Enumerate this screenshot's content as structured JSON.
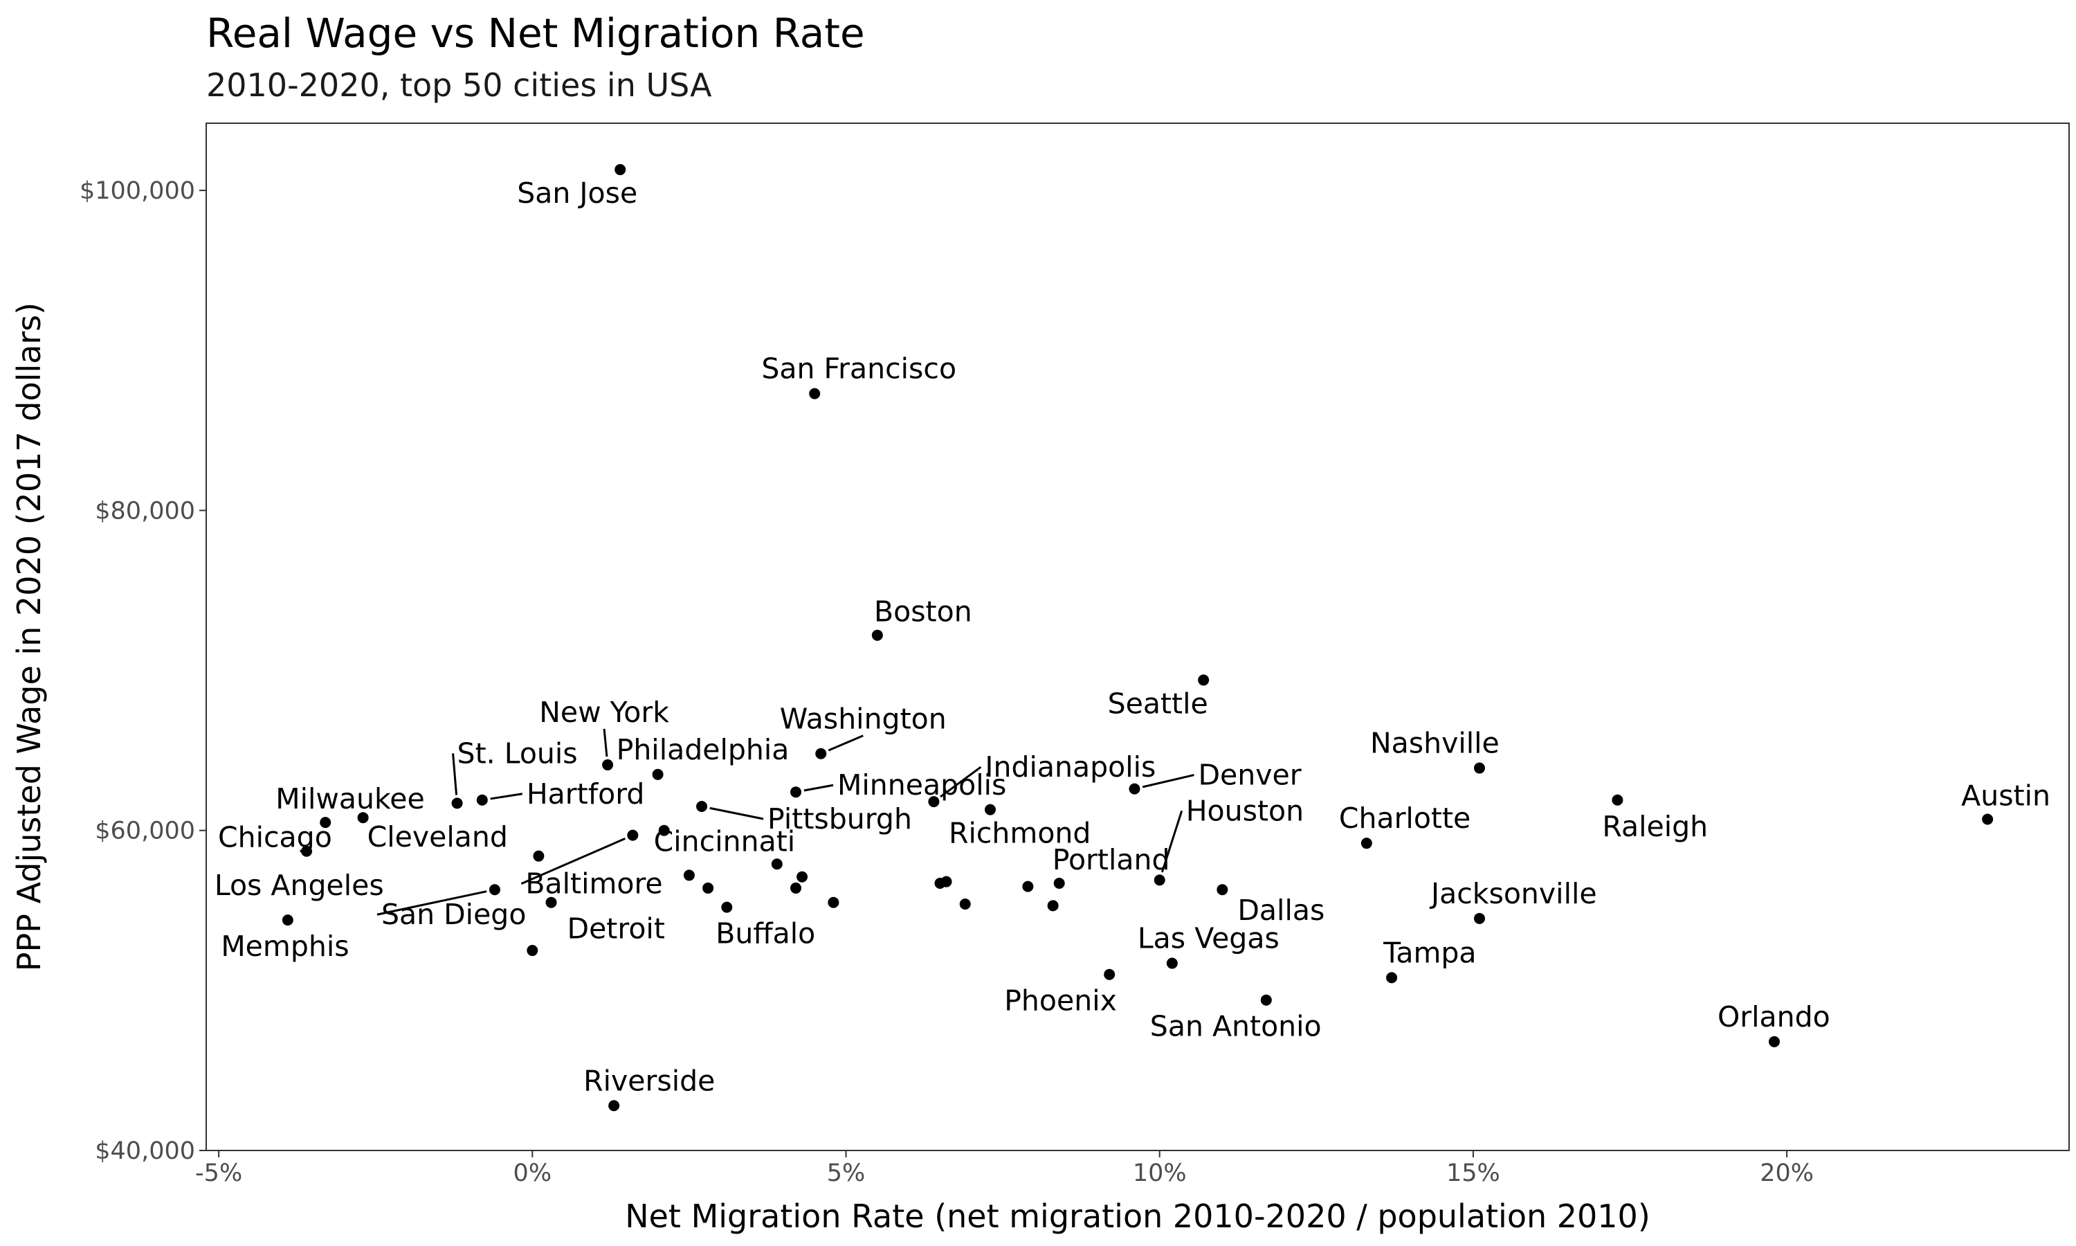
{
  "chart_data": {
    "type": "scatter",
    "title": "Real Wage vs Net Migration Rate",
    "subtitle": "2010-2020, top 50 cities in USA",
    "xlabel": "Net Migration Rate (net migration 2010-2020 / population 2010)",
    "ylabel": "PPP Adjusted Wage in 2020 (2017 dollars)",
    "xlim": [
      -0.052,
      0.245
    ],
    "ylim": [
      40000,
      104200
    ],
    "x_ticks": [
      -0.05,
      0,
      0.05,
      0.1,
      0.15,
      0.2
    ],
    "x_tick_labels": [
      "-5%",
      "0%",
      "5%",
      "10%",
      "15%",
      "20%"
    ],
    "y_ticks": [
      40000,
      60000,
      80000,
      100000
    ],
    "y_tick_labels": [
      "$40,000",
      "$60,000",
      "$80,000",
      "$100,000"
    ],
    "grid": false,
    "marker_color": "#000000",
    "points": [
      {
        "label": "San Jose",
        "x": 0.014,
        "y": 101300
      },
      {
        "label": "San Francisco",
        "x": 0.045,
        "y": 87300
      },
      {
        "label": "Boston",
        "x": 0.055,
        "y": 72200
      },
      {
        "label": "Seattle",
        "x": 0.107,
        "y": 69400
      },
      {
        "label": "Washington",
        "x": 0.046,
        "y": 64800
      },
      {
        "label": "New York",
        "x": 0.012,
        "y": 64100
      },
      {
        "label": "Philadelphia",
        "x": 0.02,
        "y": 63500
      },
      {
        "label": "Nashville",
        "x": 0.151,
        "y": 63900
      },
      {
        "label": "Indianapolis",
        "x": 0.064,
        "y": 61800
      },
      {
        "label": "Minneapolis",
        "x": 0.042,
        "y": 62400
      },
      {
        "label": "Denver",
        "x": 0.096,
        "y": 62600
      },
      {
        "label": "Raleigh",
        "x": 0.173,
        "y": 61900
      },
      {
        "label": "Austin",
        "x": 0.232,
        "y": 60700
      },
      {
        "label": "St. Louis",
        "x": -0.012,
        "y": 61700
      },
      {
        "label": "Hartford",
        "x": -0.008,
        "y": 61900
      },
      {
        "label": "Milwaukee",
        "x": -0.033,
        "y": 60500
      },
      {
        "label": "Cleveland",
        "x": -0.027,
        "y": 60800
      },
      {
        "label": "Chicago",
        "x": -0.036,
        "y": 58700
      },
      {
        "label": "Pittsburgh",
        "x": 0.027,
        "y": 61500
      },
      {
        "label": "Richmond",
        "x": 0.073,
        "y": 61300
      },
      {
        "label": "Houston",
        "x": 0.1,
        "y": 56900
      },
      {
        "label": "Charlotte",
        "x": 0.133,
        "y": 59200
      },
      {
        "label": "Cincinnati",
        "x": 0.021,
        "y": 60000
      },
      {
        "label": "Baltimore",
        "x": 0.016,
        "y": 59700
      },
      {
        "label": "Portland",
        "x": 0.084,
        "y": 56700
      },
      {
        "label": "Los Angeles",
        "x": -0.039,
        "y": 54400
      },
      {
        "label": "Memphis",
        "x": 0.0,
        "y": 52500
      },
      {
        "label": "San Diego",
        "x": -0.006,
        "y": 56300
      },
      {
        "label": "Detroit",
        "x": 0.003,
        "y": 55500
      },
      {
        "label": "Buffalo",
        "x": 0.031,
        "y": 55200
      },
      {
        "label": "Dallas",
        "x": 0.11,
        "y": 56300
      },
      {
        "label": "Jacksonville",
        "x": 0.151,
        "y": 54500
      },
      {
        "label": "Las Vegas",
        "x": 0.102,
        "y": 51700
      },
      {
        "label": "Tampa",
        "x": 0.137,
        "y": 50800
      },
      {
        "label": "Phoenix",
        "x": 0.092,
        "y": 51000
      },
      {
        "label": "San Antonio",
        "x": 0.117,
        "y": 49400
      },
      {
        "label": "Orlando",
        "x": 0.198,
        "y": 46800
      },
      {
        "label": "Riverside",
        "x": 0.013,
        "y": 42800
      },
      {
        "label": "",
        "x": 0.001,
        "y": 58400
      },
      {
        "label": "",
        "x": 0.025,
        "y": 57200
      },
      {
        "label": "",
        "x": 0.028,
        "y": 56400
      },
      {
        "label": "",
        "x": 0.039,
        "y": 57900
      },
      {
        "label": "",
        "x": 0.042,
        "y": 56400
      },
      {
        "label": "",
        "x": 0.043,
        "y": 57100
      },
      {
        "label": "",
        "x": 0.048,
        "y": 55500
      },
      {
        "label": "",
        "x": 0.065,
        "y": 56700
      },
      {
        "label": "",
        "x": 0.066,
        "y": 56800
      },
      {
        "label": "",
        "x": 0.069,
        "y": 55400
      },
      {
        "label": "",
        "x": 0.079,
        "y": 56500
      },
      {
        "label": "",
        "x": 0.083,
        "y": 55300
      }
    ]
  }
}
